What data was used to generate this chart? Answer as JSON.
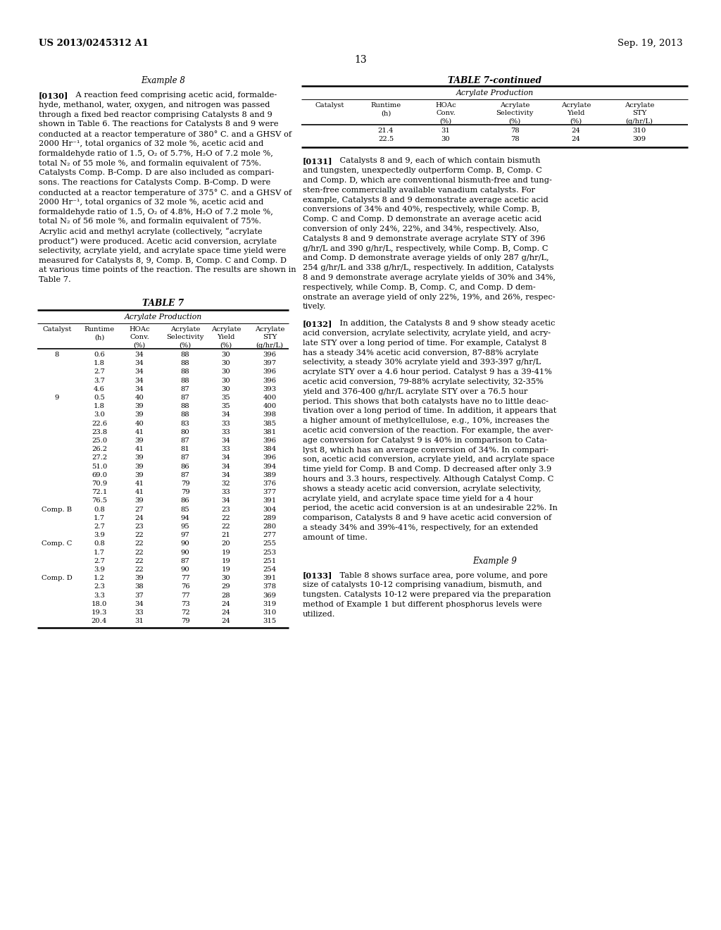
{
  "page_number": "13",
  "patent_number": "US 2013/0245312 A1",
  "patent_date": "Sep. 19, 2013",
  "example8_heading": "Example 8",
  "example9_heading": "Example 9",
  "table_section_header": "Acrylate Production",
  "table7_title": "TABLE 7",
  "table7cont_title": "TABLE 7-continued",
  "col_headers": [
    "Catalyst",
    "Runtime\n(h)",
    "HOAc\nConv.\n(%)",
    "Acrylate\nSelectivity\n(%)",
    "Acrylate\nYield\n(%)",
    "Acrylate\nSTY\n(g/hr/L)"
  ],
  "table7_data": [
    [
      "8",
      "0.6",
      "34",
      "88",
      "30",
      "396"
    ],
    [
      "",
      "1.8",
      "34",
      "88",
      "30",
      "397"
    ],
    [
      "",
      "2.7",
      "34",
      "88",
      "30",
      "396"
    ],
    [
      "",
      "3.7",
      "34",
      "88",
      "30",
      "396"
    ],
    [
      "",
      "4.6",
      "34",
      "87",
      "30",
      "393"
    ],
    [
      "9",
      "0.5",
      "40",
      "87",
      "35",
      "400"
    ],
    [
      "",
      "1.8",
      "39",
      "88",
      "35",
      "400"
    ],
    [
      "",
      "3.0",
      "39",
      "88",
      "34",
      "398"
    ],
    [
      "",
      "22.6",
      "40",
      "83",
      "33",
      "385"
    ],
    [
      "",
      "23.8",
      "41",
      "80",
      "33",
      "381"
    ],
    [
      "",
      "25.0",
      "39",
      "87",
      "34",
      "396"
    ],
    [
      "",
      "26.2",
      "41",
      "81",
      "33",
      "384"
    ],
    [
      "",
      "27.2",
      "39",
      "87",
      "34",
      "396"
    ],
    [
      "",
      "51.0",
      "39",
      "86",
      "34",
      "394"
    ],
    [
      "",
      "69.0",
      "39",
      "87",
      "34",
      "389"
    ],
    [
      "",
      "70.9",
      "41",
      "79",
      "32",
      "376"
    ],
    [
      "",
      "72.1",
      "41",
      "79",
      "33",
      "377"
    ],
    [
      "",
      "76.5",
      "39",
      "86",
      "34",
      "391"
    ],
    [
      "Comp. B",
      "0.8",
      "27",
      "85",
      "23",
      "304"
    ],
    [
      "",
      "1.7",
      "24",
      "94",
      "22",
      "289"
    ],
    [
      "",
      "2.7",
      "23",
      "95",
      "22",
      "280"
    ],
    [
      "",
      "3.9",
      "22",
      "97",
      "21",
      "277"
    ],
    [
      "Comp. C",
      "0.8",
      "22",
      "90",
      "20",
      "255"
    ],
    [
      "",
      "1.7",
      "22",
      "90",
      "19",
      "253"
    ],
    [
      "",
      "2.7",
      "22",
      "87",
      "19",
      "251"
    ],
    [
      "",
      "3.9",
      "22",
      "90",
      "19",
      "254"
    ],
    [
      "Comp. D",
      "1.2",
      "39",
      "77",
      "30",
      "391"
    ],
    [
      "",
      "2.3",
      "38",
      "76",
      "29",
      "378"
    ],
    [
      "",
      "3.3",
      "37",
      "77",
      "28",
      "369"
    ],
    [
      "",
      "18.0",
      "34",
      "73",
      "24",
      "319"
    ],
    [
      "",
      "19.3",
      "33",
      "72",
      "24",
      "310"
    ],
    [
      "",
      "20.4",
      "31",
      "79",
      "24",
      "315"
    ]
  ],
  "table7cont_data": [
    [
      "",
      "21.4",
      "31",
      "78",
      "24",
      "310"
    ],
    [
      "",
      "22.5",
      "30",
      "78",
      "24",
      "309"
    ]
  ],
  "left_col_lines": [
    "[0130]    A reaction feed comprising acetic acid, formalde-",
    "hyde, methanol, water, oxygen, and nitrogen was passed",
    "through a fixed bed reactor comprising Catalysts 8 and 9",
    "shown in Table 6. The reactions for Catalysts 8 and 9 were",
    "conducted at a reactor temperature of 380° C. and a GHSV of",
    "2000 Hr⁻¹, total organics of 32 mole %, acetic acid and",
    "formaldehyde ratio of 1.5, O₂ of 5.7%, H₂O of 7.2 mole %,",
    "total N₂ of 55 mole %, and formalin equivalent of 75%.",
    "Catalysts Comp. B-Comp. D are also included as compari-",
    "sons. The reactions for Catalysts Comp. B-Comp. D were",
    "conducted at a reactor temperature of 375° C. and a GHSV of",
    "2000 Hr⁻¹, total organics of 32 mole %, acetic acid and",
    "formaldehyde ratio of 1.5, O₂ of 4.8%, H₂O of 7.2 mole %,",
    "total N₂ of 56 mole %, and formalin equivalent of 75%.",
    "Acrylic acid and methyl acrylate (collectively, “acrylate",
    "product”) were produced. Acetic acid conversion, acrylate",
    "selectivity, acrylate yield, and acrylate space time yield were",
    "measured for Catalysts 8, 9, Comp. B, Comp. C and Comp. D",
    "at various time points of the reaction. The results are shown in",
    "Table 7."
  ],
  "right_col_lines_0131": [
    "[0131]    Catalysts 8 and 9, each of which contain bismuth",
    "and tungsten, unexpectedly outperform Comp. B, Comp. C",
    "and Comp. D, which are conventional bismuth-free and tung-",
    "sten-free commercially available vanadium catalysts. For",
    "example, Catalysts 8 and 9 demonstrate average acetic acid",
    "conversions of 34% and 40%, respectively, while Comp. B,",
    "Comp. C and Comp. D demonstrate an average acetic acid",
    "conversion of only 24%, 22%, and 34%, respectively. Also,",
    "Catalysts 8 and 9 demonstrate average acrylate STY of 396",
    "g/hr/L and 390 g/hr/L, respectively, while Comp. B, Comp. C",
    "and Comp. D demonstrate average yields of only 287 g/hr/L,",
    "254 g/hr/L and 338 g/hr/L, respectively. In addition, Catalysts",
    "8 and 9 demonstrate average acrylate yields of 30% and 34%,",
    "respectively, while Comp. B, Comp. C, and Comp. D dem-",
    "onstrate an average yield of only 22%, 19%, and 26%, respec-",
    "tively."
  ],
  "right_col_lines_0132": [
    "[0132]    In addition, the Catalysts 8 and 9 show steady acetic",
    "acid conversion, acrylate selectivity, acrylate yield, and acry-",
    "late STY over a long period of time. For example, Catalyst 8",
    "has a steady 34% acetic acid conversion, 87-88% acrylate",
    "selectivity, a steady 30% acrylate yield and 393-397 g/hr/L",
    "acrylate STY over a 4.6 hour period. Catalyst 9 has a 39-41%",
    "acetic acid conversion, 79-88% acrylate selectivity, 32-35%",
    "yield and 376-400 g/hr/L acrylate STY over a 76.5 hour",
    "period. This shows that both catalysts have no to little deac-",
    "tivation over a long period of time. In addition, it appears that",
    "a higher amount of methylcellulose, e.g., 10%, increases the",
    "acetic acid conversion of the reaction. For example, the aver-",
    "age conversion for Catalyst 9 is 40% in comparison to Cata-",
    "lyst 8, which has an average conversion of 34%. In compari-",
    "son, acetic acid conversion, acrylate yield, and acrylate space",
    "time yield for Comp. B and Comp. D decreased after only 3.9",
    "hours and 3.3 hours, respectively. Although Catalyst Comp. C",
    "shows a steady acetic acid conversion, acrylate selectivity,",
    "acrylate yield, and acrylate space time yield for a 4 hour",
    "period, the acetic acid conversion is at an undesirable 22%. In",
    "comparison, Catalysts 8 and 9 have acetic acid conversion of",
    "a steady 34% and 39%-41%, respectively, for an extended",
    "amount of time."
  ],
  "right_col_lines_0133": [
    "[0133]    Table 8 shows surface area, pore volume, and pore",
    "size of catalysts 10-12 comprising vanadium, bismuth, and",
    "tungsten. Catalysts 10-12 were prepared via the preparation",
    "method of Example 1 but different phosphorus levels were",
    "utilized."
  ]
}
